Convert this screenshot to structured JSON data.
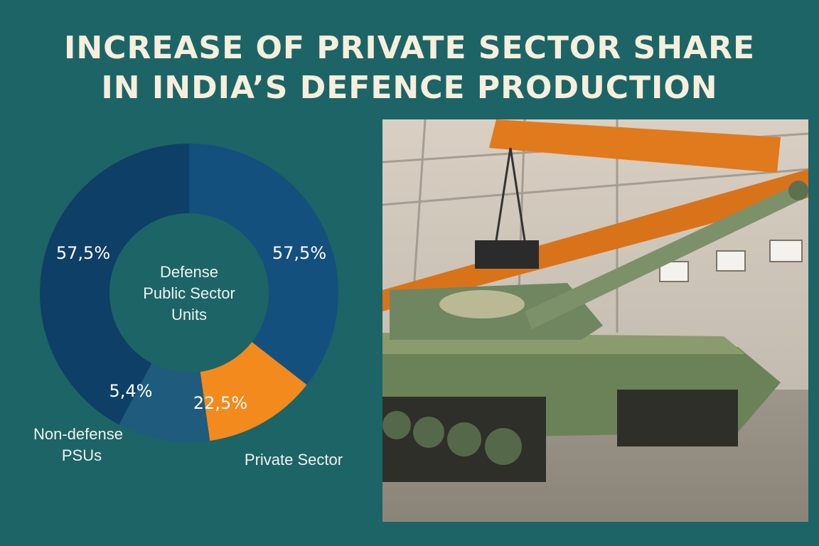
{
  "title": {
    "line1": "INCREASE OF PRIVATE SECTOR SHARE",
    "line2": "IN INDIA’S DEFENCE PRODUCTION"
  },
  "chart_data": {
    "type": "pie",
    "donut": true,
    "slices": [
      {
        "label": "Defense Public Sector Units",
        "value_label": "57,5%",
        "color": "#0e3f66"
      },
      {
        "label": "",
        "value_label": "57,5%",
        "color": "#14507d"
      },
      {
        "label": "Private Sector",
        "value_label": "22,5%",
        "color": "#f28a1e"
      },
      {
        "label": "Non-defense PSUs",
        "value_label": "5,4%",
        "color": "#1f5b7c"
      }
    ],
    "center_label": [
      "Defense",
      "Public Sector",
      "Units"
    ],
    "outside_labels": {
      "non_defense": [
        "Non-defense",
        "PSUs"
      ],
      "private": "Private Sector"
    }
  },
  "image": {
    "subject": "tank-in-factory-photo"
  }
}
